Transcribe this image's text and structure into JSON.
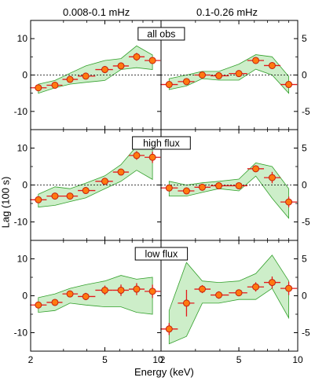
{
  "figure": {
    "column_titles": [
      "0.008-0.1 mHz",
      "0.1-0.26 mHz"
    ],
    "ylabel": "Lag (100 s)",
    "xlabel": "Energy (keV)"
  },
  "colors": {
    "band_fill": "#cdeec9",
    "band_stroke": "#33a02c",
    "marker_fill": "#ff7a10",
    "marker_edge": "#c81e0c",
    "errorbar": "#e31a1c",
    "axes": "#000000"
  },
  "chart_data": [
    {
      "type": "scatter",
      "row": 0,
      "col": 0,
      "x_scale": "log",
      "xlim": [
        2,
        10
      ],
      "ylim": [
        -15,
        15
      ],
      "xtick_labels": [
        "2",
        "5",
        "10"
      ],
      "ytick_labels": [
        "10",
        "0",
        "-10"
      ],
      "zero_line": true,
      "x": [
        2.2,
        2.7,
        3.25,
        3.95,
        5.0,
        6.1,
        7.4,
        9.0
      ],
      "y": [
        -3.5,
        -2.8,
        -1.2,
        -0.3,
        1.5,
        2.5,
        5.0,
        4.0
      ],
      "band_upper": [
        -2.5,
        -1.5,
        0.5,
        2.5,
        4.0,
        4.5,
        8.0,
        5.5
      ],
      "band_lower": [
        -5.0,
        -3.5,
        -2.5,
        -2.0,
        -1.5,
        1.5,
        2.0,
        1.5
      ]
    },
    {
      "type": "scatter",
      "row": 0,
      "col": 1,
      "x_scale": "log",
      "xlim": [
        2,
        10
      ],
      "ylim": [
        -7.5,
        7.5
      ],
      "xtick_labels": [],
      "ytick_labels": [
        "5",
        "0",
        "-5"
      ],
      "zero_line": true,
      "label": "all obs",
      "x": [
        2.2,
        2.7,
        3.25,
        3.95,
        5.0,
        6.1,
        7.4,
        9.0
      ],
      "y": [
        -1.3,
        -0.9,
        0.0,
        -0.1,
        0.2,
        2.0,
        1.3,
        -1.3
      ],
      "band_upper": [
        -0.5,
        0.0,
        0.5,
        0.5,
        1.5,
        2.8,
        2.5,
        -0.2
      ],
      "band_lower": [
        -2.0,
        -1.5,
        -0.5,
        -0.7,
        -0.7,
        0.8,
        0.0,
        -2.5
      ]
    },
    {
      "type": "scatter",
      "row": 1,
      "col": 0,
      "x_scale": "log",
      "xlim": [
        2,
        10
      ],
      "ylim": [
        -15,
        15
      ],
      "xtick_labels": [
        "2",
        "5",
        "10"
      ],
      "ytick_labels": [
        "10",
        "0",
        "-10"
      ],
      "zero_line": true,
      "x": [
        2.2,
        2.7,
        3.25,
        3.95,
        5.0,
        6.1,
        7.4,
        9.0
      ],
      "y": [
        -4.0,
        -3.0,
        -3.0,
        -1.5,
        1.0,
        3.5,
        8.0,
        7.5
      ],
      "band_upper": [
        -2.5,
        -0.5,
        -1.0,
        0.5,
        2.5,
        5.5,
        10.5,
        10.0
      ],
      "band_lower": [
        -6.0,
        -5.5,
        -4.5,
        -3.5,
        -1.0,
        1.0,
        4.0,
        1.5
      ]
    },
    {
      "type": "scatter",
      "row": 1,
      "col": 1,
      "x_scale": "log",
      "xlim": [
        2,
        10
      ],
      "ylim": [
        -7.5,
        7.5
      ],
      "xtick_labels": [],
      "ytick_labels": [
        "5",
        "0",
        "-5"
      ],
      "zero_line": true,
      "label": "high flux",
      "x": [
        2.2,
        2.7,
        3.25,
        3.95,
        5.0,
        6.1,
        7.4,
        9.0
      ],
      "y": [
        -0.4,
        -0.8,
        -0.3,
        -0.1,
        -0.1,
        2.2,
        1.0,
        -2.3
      ],
      "band_upper": [
        0.5,
        0.0,
        0.3,
        0.5,
        0.8,
        3.0,
        2.5,
        -0.5
      ],
      "band_lower": [
        -1.5,
        -1.5,
        -1.0,
        -0.5,
        -0.8,
        1.2,
        -1.8,
        -4.5
      ]
    },
    {
      "type": "scatter",
      "row": 2,
      "col": 0,
      "x_scale": "log",
      "xlim": [
        2,
        10
      ],
      "ylim": [
        -15,
        15
      ],
      "xtick_labels": [
        "2",
        "5",
        "10"
      ],
      "ytick_labels": [
        "10",
        "0",
        "-10"
      ],
      "zero_line": false,
      "x": [
        2.2,
        2.7,
        3.25,
        3.95,
        5.0,
        6.1,
        7.4,
        9.0
      ],
      "y": [
        -2.5,
        -1.8,
        0.5,
        -0.2,
        1.5,
        1.5,
        1.8,
        1.2
      ],
      "band_upper": [
        -0.5,
        0.5,
        2.0,
        3.0,
        4.0,
        5.5,
        4.5,
        5.0
      ],
      "band_lower": [
        -4.5,
        -4.0,
        -2.0,
        -2.5,
        -3.0,
        -3.0,
        -4.5,
        -5.0
      ]
    },
    {
      "type": "scatter",
      "row": 2,
      "col": 1,
      "x_scale": "log",
      "xlim": [
        2,
        10
      ],
      "ylim": [
        -7.5,
        7.5
      ],
      "xtick_labels": [
        "2",
        "5",
        "10"
      ],
      "ytick_labels": [
        "5",
        "0",
        "-5"
      ],
      "zero_line": false,
      "label": "low flux",
      "x": [
        2.2,
        2.7,
        3.25,
        3.95,
        5.0,
        6.1,
        7.4,
        9.0
      ],
      "y": [
        -4.5,
        -1.0,
        0.9,
        0.1,
        0.4,
        1.2,
        1.8,
        1.0
      ],
      "band_upper": [
        -2.0,
        4.5,
        2.0,
        1.8,
        2.0,
        3.0,
        5.5,
        2.0
      ],
      "band_lower": [
        -6.5,
        -5.5,
        -1.0,
        -1.0,
        -0.5,
        -0.5,
        1.0,
        -3.0
      ]
    }
  ]
}
